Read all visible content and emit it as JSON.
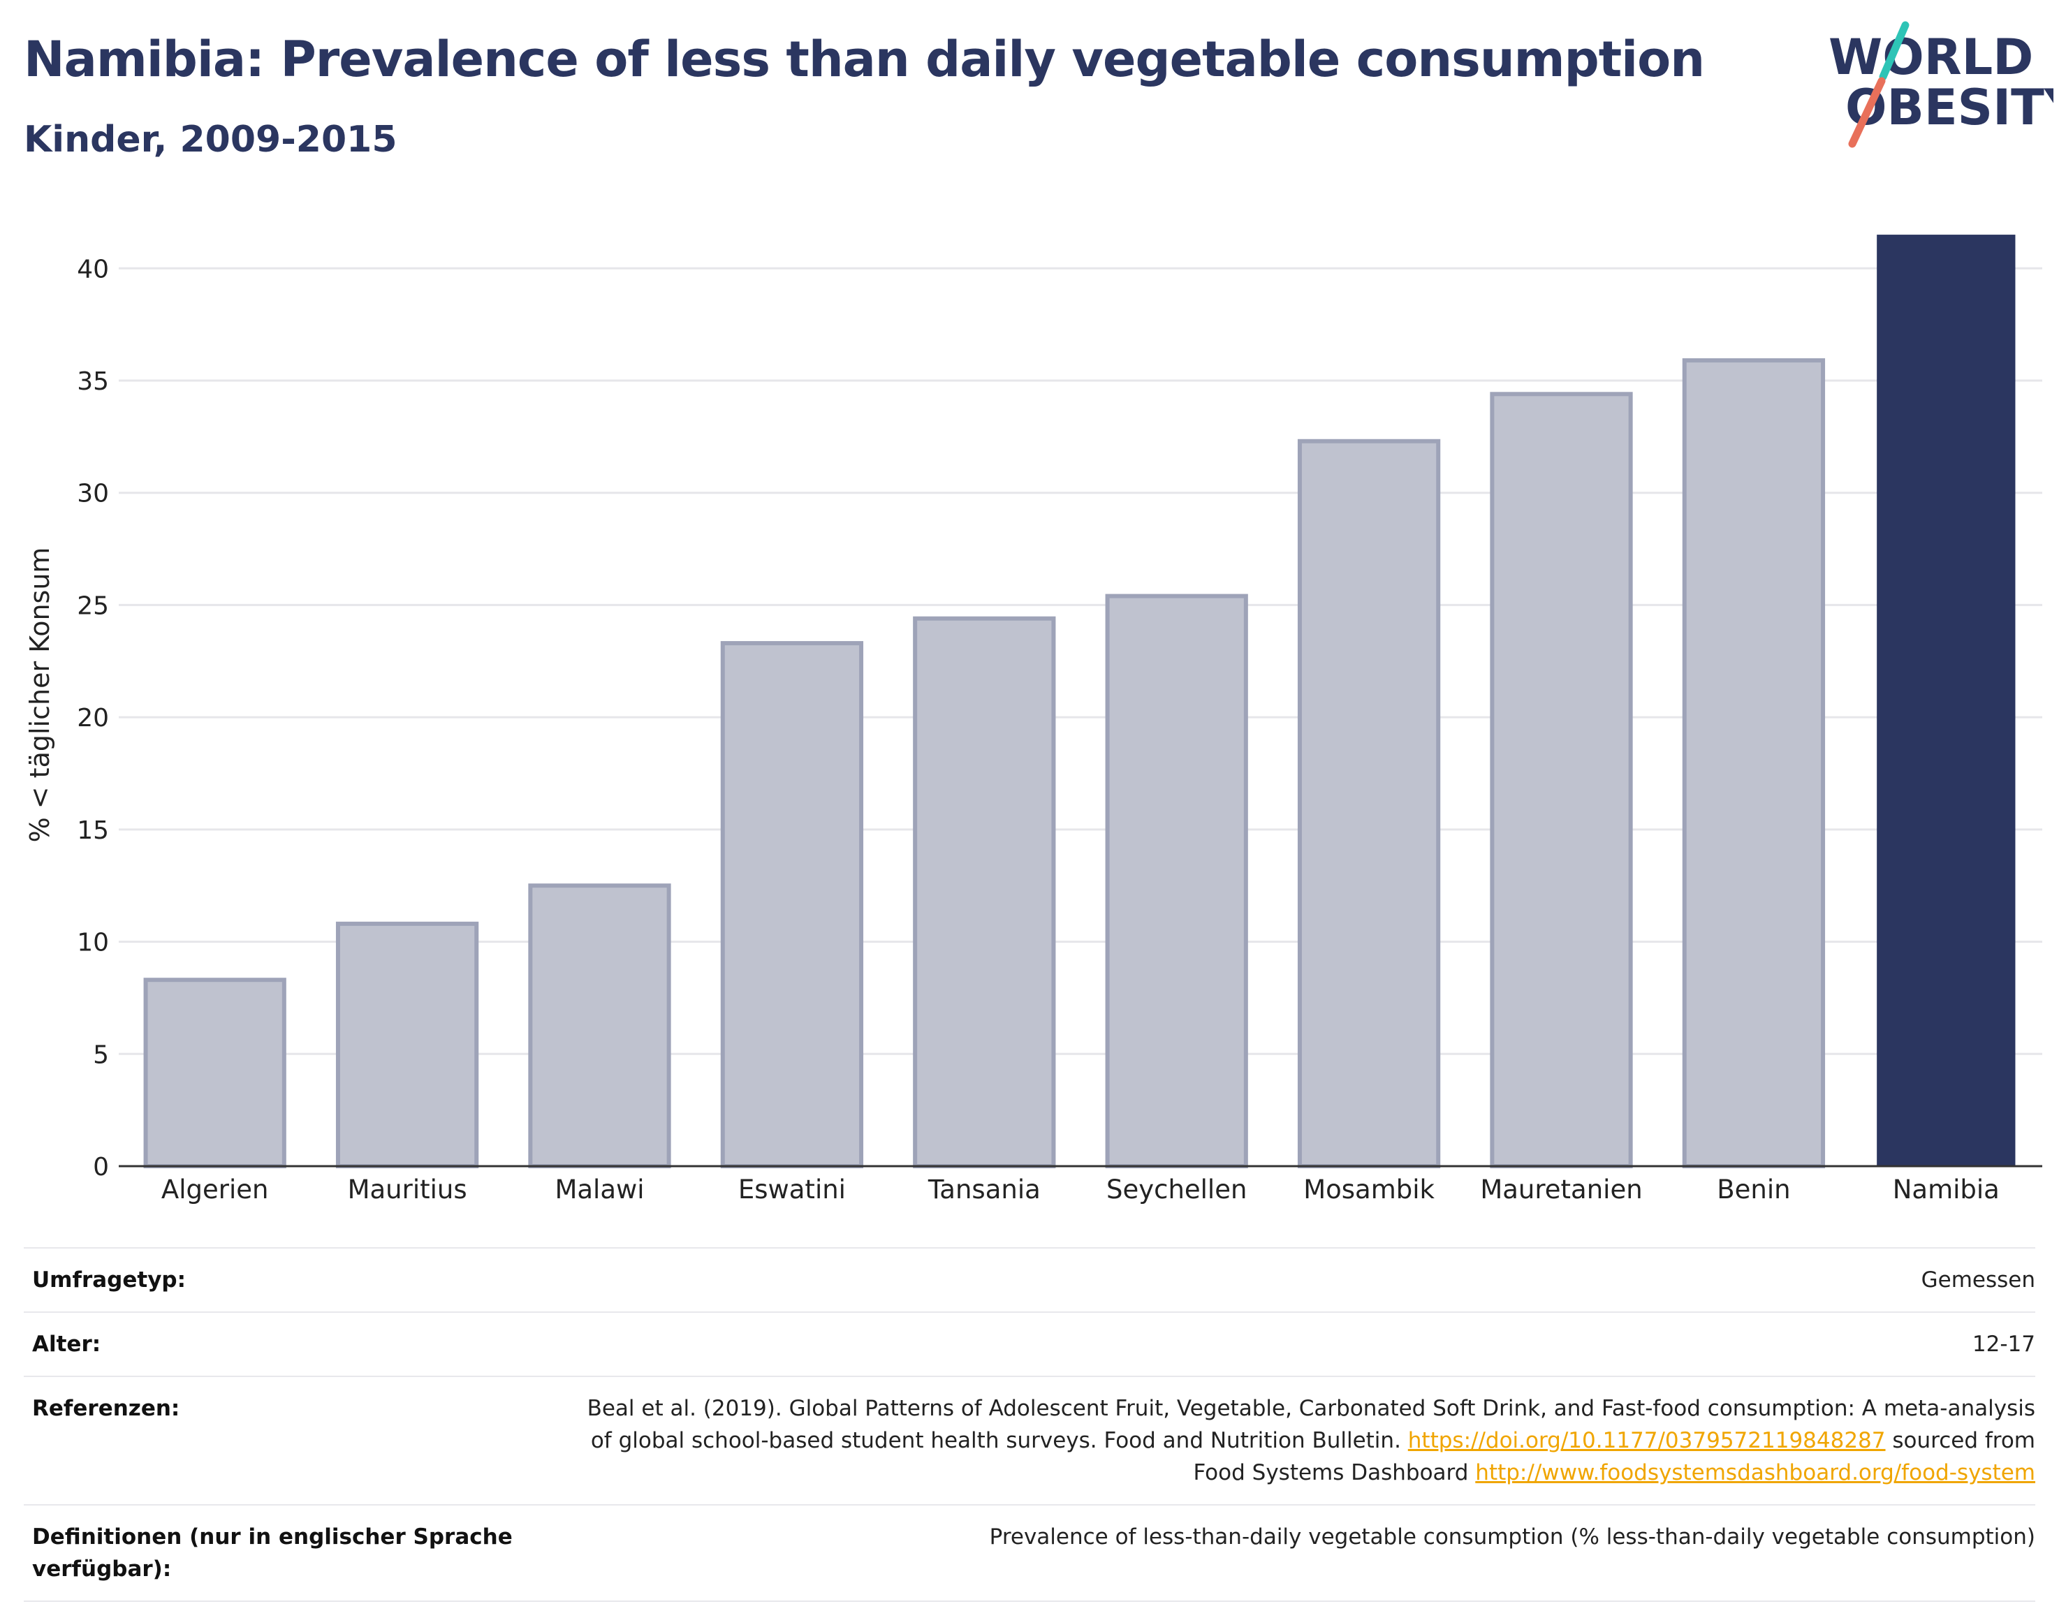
{
  "title": "Namibia: Prevalence of less than daily vegetable consumption",
  "subtitle": "Kinder, 2009-2015",
  "logo": {
    "line1": "WORLD",
    "line2": "OBESITY"
  },
  "colors": {
    "highlight": "#2b3660",
    "bar_fill": "#bfc2cf",
    "bar_stroke": "#9ea3b8",
    "link": "#f0a500"
  },
  "chart_data": {
    "type": "bar",
    "categories": [
      "Algerien",
      "Mauritius",
      "Malawi",
      "Eswatini",
      "Tansania",
      "Seychellen",
      "Mosambik",
      "Mauretanien",
      "Benin",
      "Namibia"
    ],
    "values": [
      8.3,
      10.8,
      12.5,
      23.3,
      24.4,
      25.4,
      32.3,
      34.4,
      35.9,
      41.5
    ],
    "highlight": "Namibia",
    "xlabel": "",
    "ylabel": "% < täglicher Konsum",
    "ylim": [
      0,
      42
    ],
    "yticks": [
      0,
      5,
      10,
      15,
      20,
      25,
      30,
      35,
      40
    ],
    "grid": true
  },
  "meta": {
    "survey_label": "Umfragetyp:",
    "survey_value": "Gemessen",
    "age_label": "Alter:",
    "age_value": "12-17",
    "ref_label": "Referenzen:",
    "ref_text1": "Beal et al. (2019). Global Patterns of Adolescent Fruit, Vegetable, Carbonated Soft Drink, and Fast-food consumption: A meta-analysis",
    "ref_text2": "of global school-based student health surveys. Food and Nutrition Bulletin.",
    "ref_link1": "https://doi.org/10.1177/0379572119848287",
    "ref_text3": "sourced from",
    "ref_text4": "Food Systems Dashboard",
    "ref_link2": "http://www.foodsystemsdashboard.org/food-system",
    "def_label": "Definitionen (nur in englischer Sprache verfügbar):",
    "def_value": "Prevalence of less-than-daily vegetable consumption (% less-than-daily vegetable consumption)"
  }
}
